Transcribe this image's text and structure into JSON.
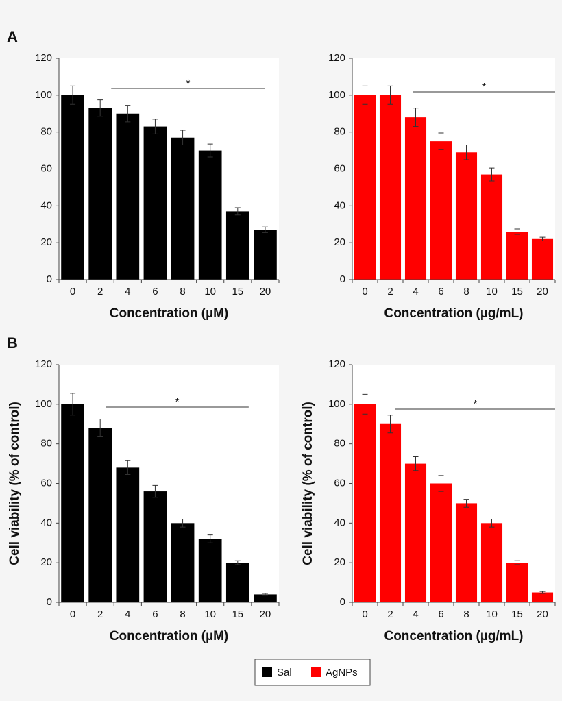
{
  "chart_data": [
    {
      "type": "bar",
      "panel": "A",
      "xlabel": "Concentration (µM)",
      "annotation": "*",
      "color": "#000000",
      "categories": [
        "0",
        "2",
        "4",
        "6",
        "8",
        "10",
        "15",
        "20"
      ],
      "values": [
        100,
        93,
        90,
        83,
        77,
        70,
        37,
        27
      ],
      "errors": [
        5,
        4.5,
        4.5,
        4,
        4,
        3.5,
        2,
        1.5
      ],
      "ylim": [
        0,
        120
      ],
      "yticks": [
        0,
        20,
        40,
        60,
        80,
        100,
        120
      ]
    },
    {
      "type": "bar",
      "xlabel": "Concentration (µg/mL)",
      "annotation": "*",
      "color": "#ff0000",
      "categories": [
        "0",
        "2",
        "4",
        "6",
        "8",
        "10",
        "15",
        "20"
      ],
      "values": [
        100,
        100,
        88,
        75,
        69,
        57,
        26,
        22
      ],
      "errors": [
        5,
        5,
        5,
        4.5,
        4,
        3.5,
        1.5,
        1
      ],
      "ylim": [
        0,
        120
      ],
      "yticks": [
        0,
        20,
        40,
        60,
        80,
        100,
        120
      ]
    },
    {
      "type": "bar",
      "panel": "B",
      "xlabel": "Concentration (µM)",
      "ylabel": "Cell viability (% of control)",
      "annotation": "*",
      "color": "#000000",
      "categories": [
        "0",
        "2",
        "4",
        "6",
        "8",
        "10",
        "15",
        "20"
      ],
      "values": [
        100,
        88,
        68,
        56,
        40,
        32,
        20,
        4
      ],
      "errors": [
        5.5,
        4.5,
        3.5,
        3,
        2,
        2,
        1,
        0.5
      ],
      "ylim": [
        0,
        120
      ],
      "yticks": [
        0,
        20,
        40,
        60,
        80,
        100,
        120
      ]
    },
    {
      "type": "bar",
      "xlabel": "Concentration (µg/mL)",
      "ylabel": "Cell viability (% of control)",
      "annotation": "*",
      "color": "#ff0000",
      "categories": [
        "0",
        "2",
        "4",
        "6",
        "8",
        "10",
        "15",
        "20"
      ],
      "values": [
        100,
        90,
        70,
        60,
        50,
        40,
        20,
        5
      ],
      "errors": [
        5,
        4.5,
        3.5,
        4,
        2,
        2,
        1,
        0.5
      ],
      "ylim": [
        0,
        120
      ],
      "yticks": [
        0,
        20,
        40,
        60,
        80,
        100,
        120
      ]
    }
  ],
  "legend": [
    {
      "name": "Sal",
      "color": "#000000"
    },
    {
      "name": "AgNPs",
      "color": "#ff0000"
    }
  ]
}
